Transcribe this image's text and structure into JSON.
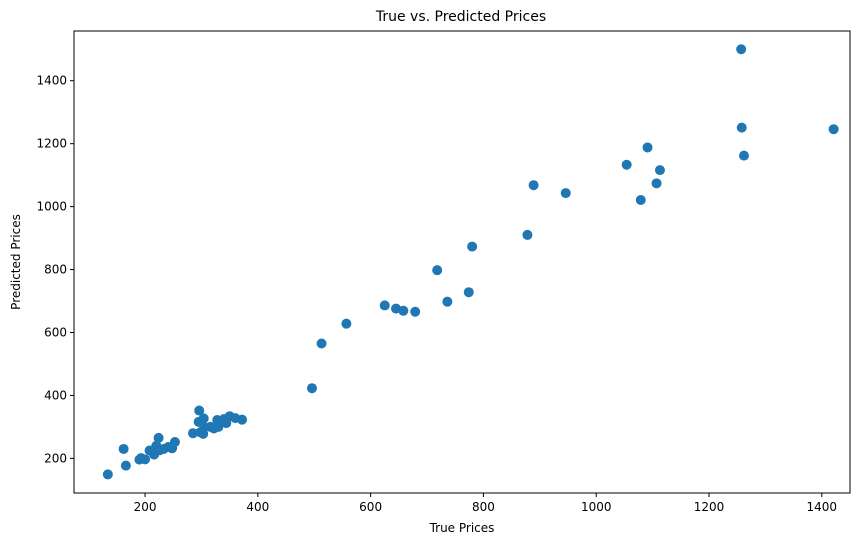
{
  "chart_data": {
    "type": "scatter",
    "title": "True vs. Predicted Prices",
    "xlabel": "True Prices",
    "ylabel": "Predicted Prices",
    "xlim": [
      74,
      1450
    ],
    "ylim": [
      90,
      1558
    ],
    "xticks": [
      200,
      400,
      600,
      800,
      1000,
      1200,
      1400
    ],
    "yticks": [
      200,
      400,
      600,
      800,
      1000,
      1200,
      1400
    ],
    "grid": false,
    "marker_color": "#1f77b4",
    "points": [
      [
        134,
        149
      ],
      [
        162,
        230
      ],
      [
        166,
        177
      ],
      [
        190,
        196
      ],
      [
        193,
        201
      ],
      [
        200,
        197
      ],
      [
        208,
        225
      ],
      [
        216,
        212
      ],
      [
        220,
        240
      ],
      [
        224,
        265
      ],
      [
        226,
        226
      ],
      [
        233,
        230
      ],
      [
        241,
        236
      ],
      [
        248,
        232
      ],
      [
        253,
        252
      ],
      [
        285,
        280
      ],
      [
        295,
        316
      ],
      [
        296,
        352
      ],
      [
        298,
        283
      ],
      [
        303,
        278
      ],
      [
        304,
        327
      ],
      [
        305,
        300
      ],
      [
        316,
        300
      ],
      [
        322,
        295
      ],
      [
        328,
        322
      ],
      [
        330,
        300
      ],
      [
        340,
        325
      ],
      [
        344,
        312
      ],
      [
        350,
        334
      ],
      [
        360,
        328
      ],
      [
        372,
        323
      ],
      [
        496,
        423
      ],
      [
        513,
        565
      ],
      [
        557,
        628
      ],
      [
        625,
        686
      ],
      [
        645,
        676
      ],
      [
        658,
        669
      ],
      [
        679,
        666
      ],
      [
        718,
        798
      ],
      [
        736,
        698
      ],
      [
        774,
        728
      ],
      [
        780,
        873
      ],
      [
        878,
        910
      ],
      [
        889,
        1068
      ],
      [
        946,
        1043
      ],
      [
        1054,
        1133
      ],
      [
        1079,
        1021
      ],
      [
        1091,
        1188
      ],
      [
        1107,
        1074
      ],
      [
        1113,
        1116
      ],
      [
        1257,
        1500
      ],
      [
        1258,
        1251
      ],
      [
        1262,
        1162
      ],
      [
        1421,
        1246
      ]
    ]
  }
}
